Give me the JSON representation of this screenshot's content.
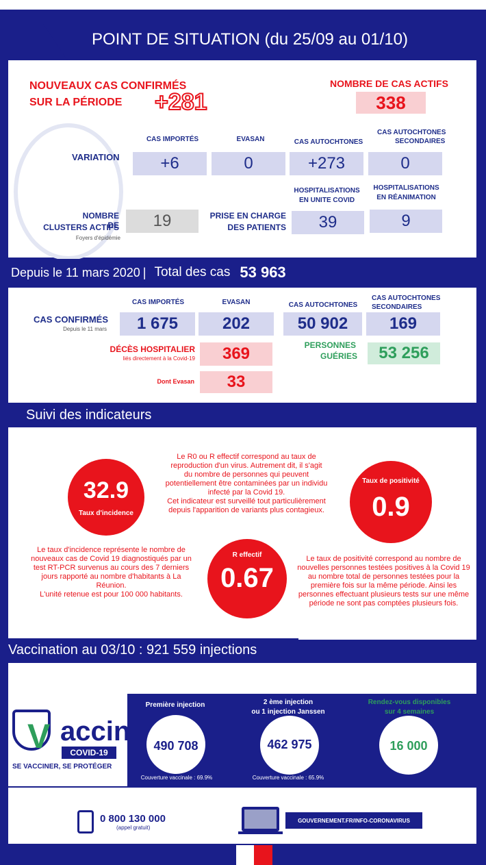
{
  "header": {
    "title": "POINT DE SITUATION (du 25/09 au 01/10)"
  },
  "new_cases": {
    "label_line1": "NOUVEAUX CAS CONFIRMÉS",
    "label_line2": "SUR LA PÉRIODE",
    "value": "+281"
  },
  "active_cases": {
    "label": "NOMBRE DE CAS ACTIFS",
    "value": "338"
  },
  "variation": {
    "row_label": "VARIATION",
    "headers": [
      "CAS IMPORTÉS",
      "EVASAN",
      "CAS AUTOCHTONES",
      "CAS AUTOCHTONES",
      "SECONDAIRES"
    ],
    "values": [
      "+6",
      "0",
      "+273",
      "0"
    ]
  },
  "clusters": {
    "label_line1": "NOMBRE DE",
    "label_line2": "CLUSTERS ACTIFS",
    "sub": "Foyers d'épidémie",
    "value": "19"
  },
  "care": {
    "label_line1": "PRISE EN CHARGE",
    "label_line2": "DES PATIENTS",
    "hosp_covid_1": "HOSPITALISATIONS",
    "hosp_covid_2": "EN UNITE COVID",
    "hosp_covid_value": "39",
    "hosp_rea_1": "HOSPITALISATIONS",
    "hosp_rea_2": "EN RÉANIMATION",
    "hosp_rea_value": "9"
  },
  "total_banner": {
    "since": "Depuis le 11 mars 2020",
    "sep": "|",
    "label": "Total des cas",
    "value": "53 963"
  },
  "totals": {
    "h_imported": "CAS IMPORTÉS",
    "h_evasan": "EVASAN",
    "h_auto": "CAS AUTOCHTONES",
    "h_sec1": "CAS AUTOCHTONES",
    "h_sec2": "SECONDAIRES",
    "row_label": "CAS CONFIRMÉS",
    "row_sub": "Depuis le 11 mars",
    "imported": "1 675",
    "evasan": "202",
    "auto": "50 902",
    "secondary": "169",
    "deaths_label": "DÉCÈS HOSPITALIER",
    "deaths_sub": "liés directement à la Covid-19",
    "deaths": "369",
    "evasan_deaths_label": "Dont Evasan",
    "evasan_deaths": "33",
    "recovered_1": "PERSONNES",
    "recovered_2": "GUÉRIES",
    "recovered": "53 256"
  },
  "indicators": {
    "banner": "Suivi des indicateurs",
    "incidence": {
      "value": "32.9",
      "label": "Taux d'incidence"
    },
    "positivity": {
      "label": "Taux de positivité",
      "value": "0.9"
    },
    "r": {
      "label": "R effectif",
      "value": "0.67"
    },
    "r_text": [
      "Le R0 ou R effectif correspond au taux de",
      "reproduction d'un virus. Autrement dit, il s'agit",
      "du nombre de personnes qui peuvent",
      "potentiellement être contaminées par un individu",
      "infecté par la Covid 19.",
      "Cet indicateur est surveillé tout particulièrement",
      "depuis l'apparition de variants plus contagieux."
    ],
    "incidence_text": [
      "Le taux d'incidence représente le nombre de",
      "nouveaux cas de Covid 19 diagnostiqués par un",
      "test  RT-PCR survenus au cours des 7 derniers",
      "jours rapporté au nombre d'habitants à La",
      "Réunion.",
      "L'unité retenue est pour 100 000 habitants."
    ],
    "positivity_text": [
      "Le taux de positivité correspond au nombre de",
      "nouvelles personnes testées positives à la Covid 19",
      "au nombre total de personnes testées pour la",
      "première fois sur la même période. Ainsi les",
      "personnes effectuant plusieurs tests sur une même",
      "période ne sont pas comptées plusieurs fois."
    ]
  },
  "vaccination": {
    "banner": "Vaccination au 03/10 : 921 559 injections",
    "logo_word": "accin",
    "logo_v": "V",
    "logo_covid": "COVID-19",
    "logo_slogan": "SE VACCINER, SE PROTÉGER",
    "first": {
      "label": "Première injection",
      "value": "490 708",
      "coverage": "Couverture vaccinale : 69.9%"
    },
    "second": {
      "label_1": "2 ème injection",
      "label_2": "ou 1 injection Janssen",
      "value": "462 975",
      "coverage": "Couverture vaccinale : 65.9%"
    },
    "appointments": {
      "label_1": "Rendez-vous disponibles",
      "label_2": "sur 4 semaines",
      "value": "16 000"
    }
  },
  "footer": {
    "phone": "0 800 130 000",
    "phone_sub": "(appel gratuit)",
    "url": "GOUVERNEMENT.FR/INFO-CORONAVIRUS"
  },
  "colors": {
    "navy": "#1a1f8a",
    "red": "#e8141c",
    "green": "#2e9e5b",
    "lavender": "#d5d7ef",
    "pink": "#f9cfd2"
  }
}
